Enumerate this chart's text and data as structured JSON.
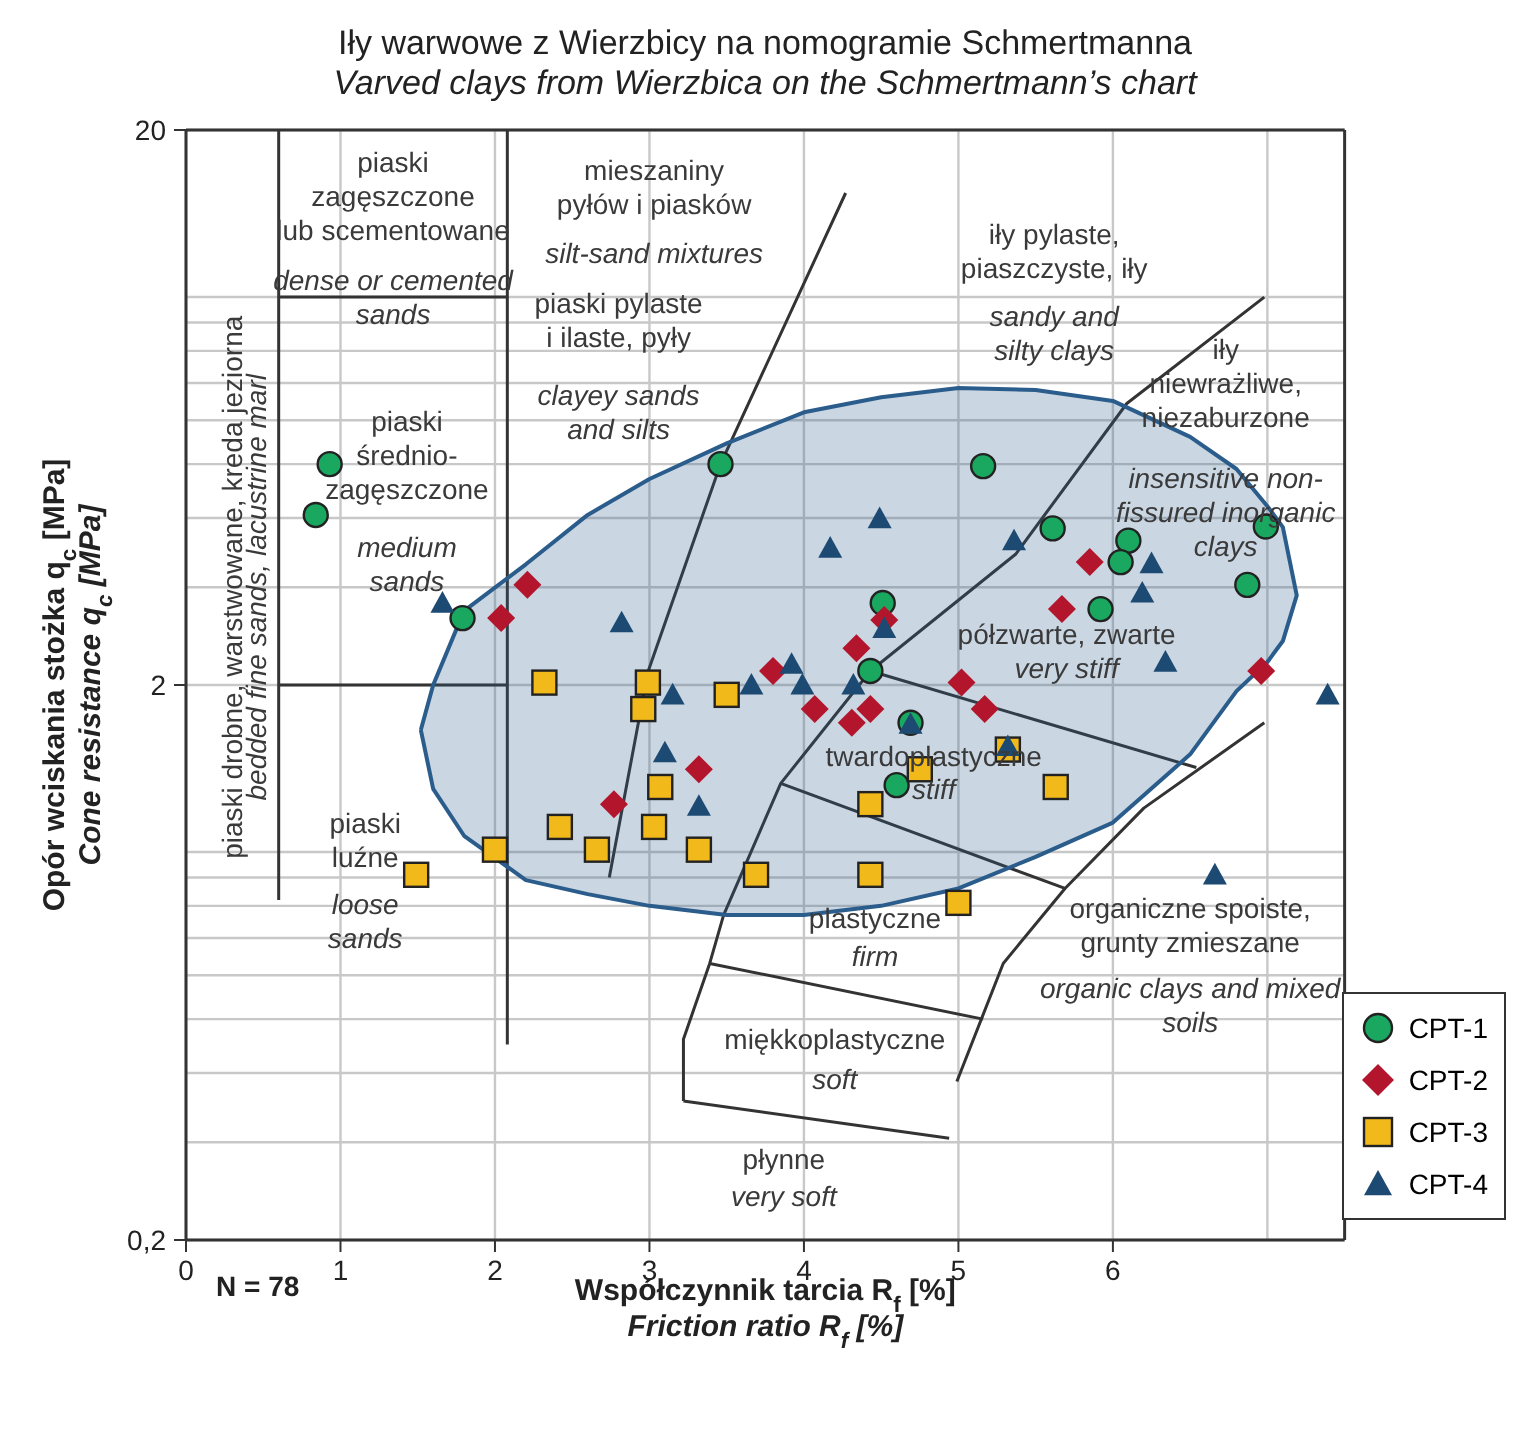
{
  "chart_data": {
    "type": "scatter",
    "title": "Iły warwowe z Wierzbicy na nomogramie Schmertmanna",
    "subtitle": "Varved clays from Wierzbica on the Schmertmann’s chart",
    "xlabel": "Współczynnik tarcia R$_{f}$ [%]\nFriction ratio R$_{f}$ [%]",
    "ylabel": "Opór wciskania stożka q$_{c}$ [MPa]\nCone resistance q$_{c}$ [MPa]",
    "xlim": [
      0,
      7.5
    ],
    "xticks": [
      0,
      1,
      2,
      3,
      4,
      5,
      6,
      {
        "value": 7,
        "label": null
      }
    ],
    "ylim": [
      0.2,
      20
    ],
    "yticks": [
      {
        "value": 0.2,
        "label": "0,2"
      },
      {
        "value": 0.3,
        "label": null
      },
      {
        "value": 0.4,
        "label": null
      },
      {
        "value": 0.5,
        "label": null
      },
      {
        "value": 0.6,
        "label": null
      },
      {
        "value": 0.7,
        "label": null
      },
      {
        "value": 0.8,
        "label": null
      },
      {
        "value": 0.9,
        "label": null
      },
      {
        "value": 1,
        "label": null
      },
      2,
      {
        "value": 3,
        "label": null
      },
      {
        "value": 4,
        "label": null
      },
      {
        "value": 5,
        "label": null
      },
      {
        "value": 6,
        "label": null
      },
      {
        "value": 7,
        "label": null
      },
      {
        "value": 8,
        "label": null
      },
      {
        "value": 9,
        "label": null
      },
      {
        "value": 10,
        "label": null
      },
      20
    ],
    "log": true,
    "grid": true,
    "legend": "bottom right",
    "series": [
      {
        "type": "area",
        "color": "#2b5d8c",
        "x": [
          1.52,
          1.6,
          1.8,
          2.2,
          2.6,
          3.0,
          3.5,
          4.0,
          4.5,
          5.0,
          5.5,
          6.0,
          6.5,
          6.8,
          7.0,
          7.1,
          7.19,
          7.1,
          7.0,
          6.8,
          6.5,
          6.0,
          5.5,
          5.0,
          4.5,
          4.0,
          3.5,
          3.0,
          2.6,
          2.2,
          1.8,
          1.6,
          1.52
        ],
        "values": [
          1.66,
          2.0,
          2.72,
          3.3,
          4.05,
          4.7,
          5.45,
          6.2,
          6.6,
          6.86,
          6.8,
          6.5,
          5.6,
          4.9,
          4.2,
          3.85,
          2.9,
          2.4,
          2.2,
          1.95,
          1.5,
          1.13,
          0.98,
          0.86,
          0.8,
          0.77,
          0.77,
          0.8,
          0.84,
          0.89,
          1.07,
          1.3,
          1.66
        ]
      },
      {
        "type": "line",
        "color": "#333333",
        "x": [
          0.6,
          0.6
        ],
        "values": [
          20,
          0.82
        ]
      },
      {
        "type": "line",
        "color": "#333333",
        "x": [
          2.08,
          2.08
        ],
        "values": [
          20,
          0.45
        ]
      },
      {
        "type": "line",
        "color": "#333333",
        "x": [
          0.6,
          2.08
        ],
        "values": [
          2,
          2
        ]
      },
      {
        "type": "line",
        "color": "#333333",
        "x": [
          0.6,
          2.08
        ],
        "values": [
          10,
          10
        ]
      },
      {
        "type": "line",
        "color": "#333333",
        "x": [
          2.74,
          2.99,
          3.46,
          4.27
        ],
        "values": [
          0.9,
          2.11,
          5.0,
          15.4
        ]
      },
      {
        "type": "line",
        "color": "#333333",
        "x": [
          3.22,
          3.22,
          3.39,
          3.48,
          3.85,
          4.43,
          5.37,
          6.09,
          6.98
        ],
        "values": [
          0.356,
          0.46,
          0.63,
          0.77,
          1.33,
          2.12,
          3.44,
          6.43,
          10.0
        ]
      },
      {
        "type": "line",
        "color": "#333333",
        "x": [
          4.43,
          6.54
        ],
        "values": [
          2.12,
          1.42
        ]
      },
      {
        "type": "line",
        "color": "#333333",
        "x": [
          3.85,
          5.69
        ],
        "values": [
          1.33,
          0.86
        ]
      },
      {
        "type": "line",
        "color": "#333333",
        "x": [
          3.39,
          5.16
        ],
        "values": [
          0.63,
          0.5
        ]
      },
      {
        "type": "line",
        "color": "#333333",
        "x": [
          3.22,
          4.94
        ],
        "values": [
          0.356,
          0.305
        ]
      },
      {
        "type": "line",
        "color": "#333333",
        "x": [
          4.99,
          5.29,
          5.69,
          6.2,
          6.98
        ],
        "values": [
          0.386,
          0.63,
          0.86,
          1.2,
          1.71
        ]
      },
      {
        "name": "CPT-1",
        "color": "#1aa860",
        "marker": "circle",
        "x": [
          0.93,
          0.84,
          1.79,
          3.46,
          5.16,
          5.61,
          6.1,
          6.05,
          5.92,
          6.99,
          6.87,
          4.51,
          4.43,
          4.69,
          4.6
        ],
        "values": [
          5.0,
          4.05,
          2.64,
          5.0,
          4.96,
          3.83,
          3.64,
          3.33,
          2.74,
          3.86,
          3.03,
          2.81,
          2.12,
          1.71,
          1.32
        ]
      },
      {
        "name": "CPT-2",
        "color": "#b3162c",
        "marker": "diamond",
        "x": [
          2.21,
          2.04,
          2.77,
          3.32,
          3.8,
          4.07,
          4.31,
          4.43,
          4.34,
          4.52,
          5.02,
          5.17,
          5.67,
          5.85,
          6.96
        ],
        "values": [
          3.03,
          2.64,
          1.22,
          1.41,
          2.12,
          1.81,
          1.71,
          1.81,
          2.33,
          2.62,
          2.02,
          1.81,
          2.74,
          3.33,
          2.12
        ]
      },
      {
        "name": "CPT-3",
        "color": "#f2b91a",
        "marker": "square",
        "x": [
          2.32,
          2.99,
          2.96,
          3.5,
          3.07,
          2.42,
          2.0,
          2.66,
          3.03,
          3.32,
          1.49,
          3.69,
          4.43,
          4.43,
          4.75,
          5.32,
          5.63,
          5.0
        ],
        "values": [
          2.02,
          2.02,
          1.81,
          1.92,
          1.31,
          1.11,
          1.01,
          1.01,
          1.11,
          1.01,
          0.91,
          0.91,
          0.91,
          1.22,
          1.41,
          1.53,
          1.31,
          0.81
        ]
      },
      {
        "name": "CPT-4",
        "color": "#1d4a73",
        "marker": "triangle",
        "x": [
          1.66,
          2.82,
          3.15,
          3.66,
          3.1,
          3.32,
          4.17,
          4.49,
          3.92,
          3.99,
          4.32,
          4.52,
          5.36,
          4.69,
          5.32,
          6.25,
          6.19,
          6.34,
          7.39,
          6.66
        ],
        "values": [
          2.81,
          2.59,
          1.92,
          2.0,
          1.51,
          1.21,
          3.53,
          3.99,
          2.18,
          2.0,
          2.0,
          2.53,
          3.64,
          1.7,
          1.55,
          3.31,
          2.93,
          2.2,
          1.92,
          0.91
        ]
      }
    ],
    "annotations": [
      "piaski\nzagęszczone\nlub scementowane",
      "dense or cemented\nsands",
      "mieszaniny\npyłów i piasków",
      "silt-sand mixtures",
      "piaski pylaste\ni ilaste, pyły",
      "clayey sands\nand silts",
      "piaski\nśrednio-\nzagęszczone",
      "medium\nsands",
      "piaski\nluźne",
      "loose\nsands",
      "piaski drobne, warstwowane, kreda jeziorna",
      "bedded fine sands, lacustrine marl",
      "iły pylaste,\npiaszczyste, iły",
      "sandy and\nsilty clays",
      "iły\nniewrażliwe,\nniezaburzone",
      "insensitive non-\nfissured inorganic\nclays",
      "półzwarte, zwarte",
      "very stiff",
      "twardoplastyczne",
      "stiff",
      "plastyczne",
      "firm",
      "miękkoplastyczne",
      "soft",
      "płynne",
      "very soft",
      "organiczne spoiste,\ngrunty zmieszane",
      "organic clays and mixed\nsoils",
      "N = 78"
    ]
  }
}
